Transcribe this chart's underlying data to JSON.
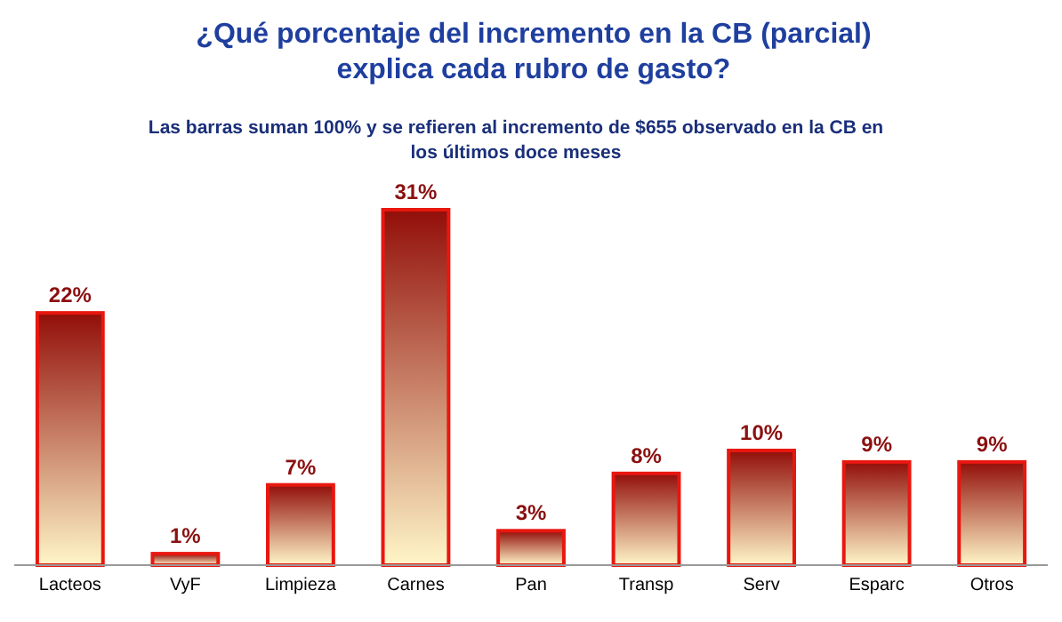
{
  "chart_data": {
    "type": "bar",
    "title": "¿Qué porcentaje del incremento en la CB (parcial) explica cada rubro de gasto?",
    "subtitle": "Las barras suman 100% y se refieren al incremento de $655 observado en la CB en los últimos doce meses",
    "categories": [
      "Lacteos",
      "VyF",
      "Limpieza",
      "Carnes",
      "Pan",
      "Transp",
      "Serv",
      "Esparc",
      "Otros"
    ],
    "values": [
      22,
      1,
      7,
      31,
      3,
      8,
      10,
      9,
      9
    ],
    "color": "#e8170f",
    "value_labels": [
      "22%",
      "1%",
      "7%",
      "31%",
      "3%",
      "8%",
      "10%",
      "9%",
      "9%"
    ]
  }
}
